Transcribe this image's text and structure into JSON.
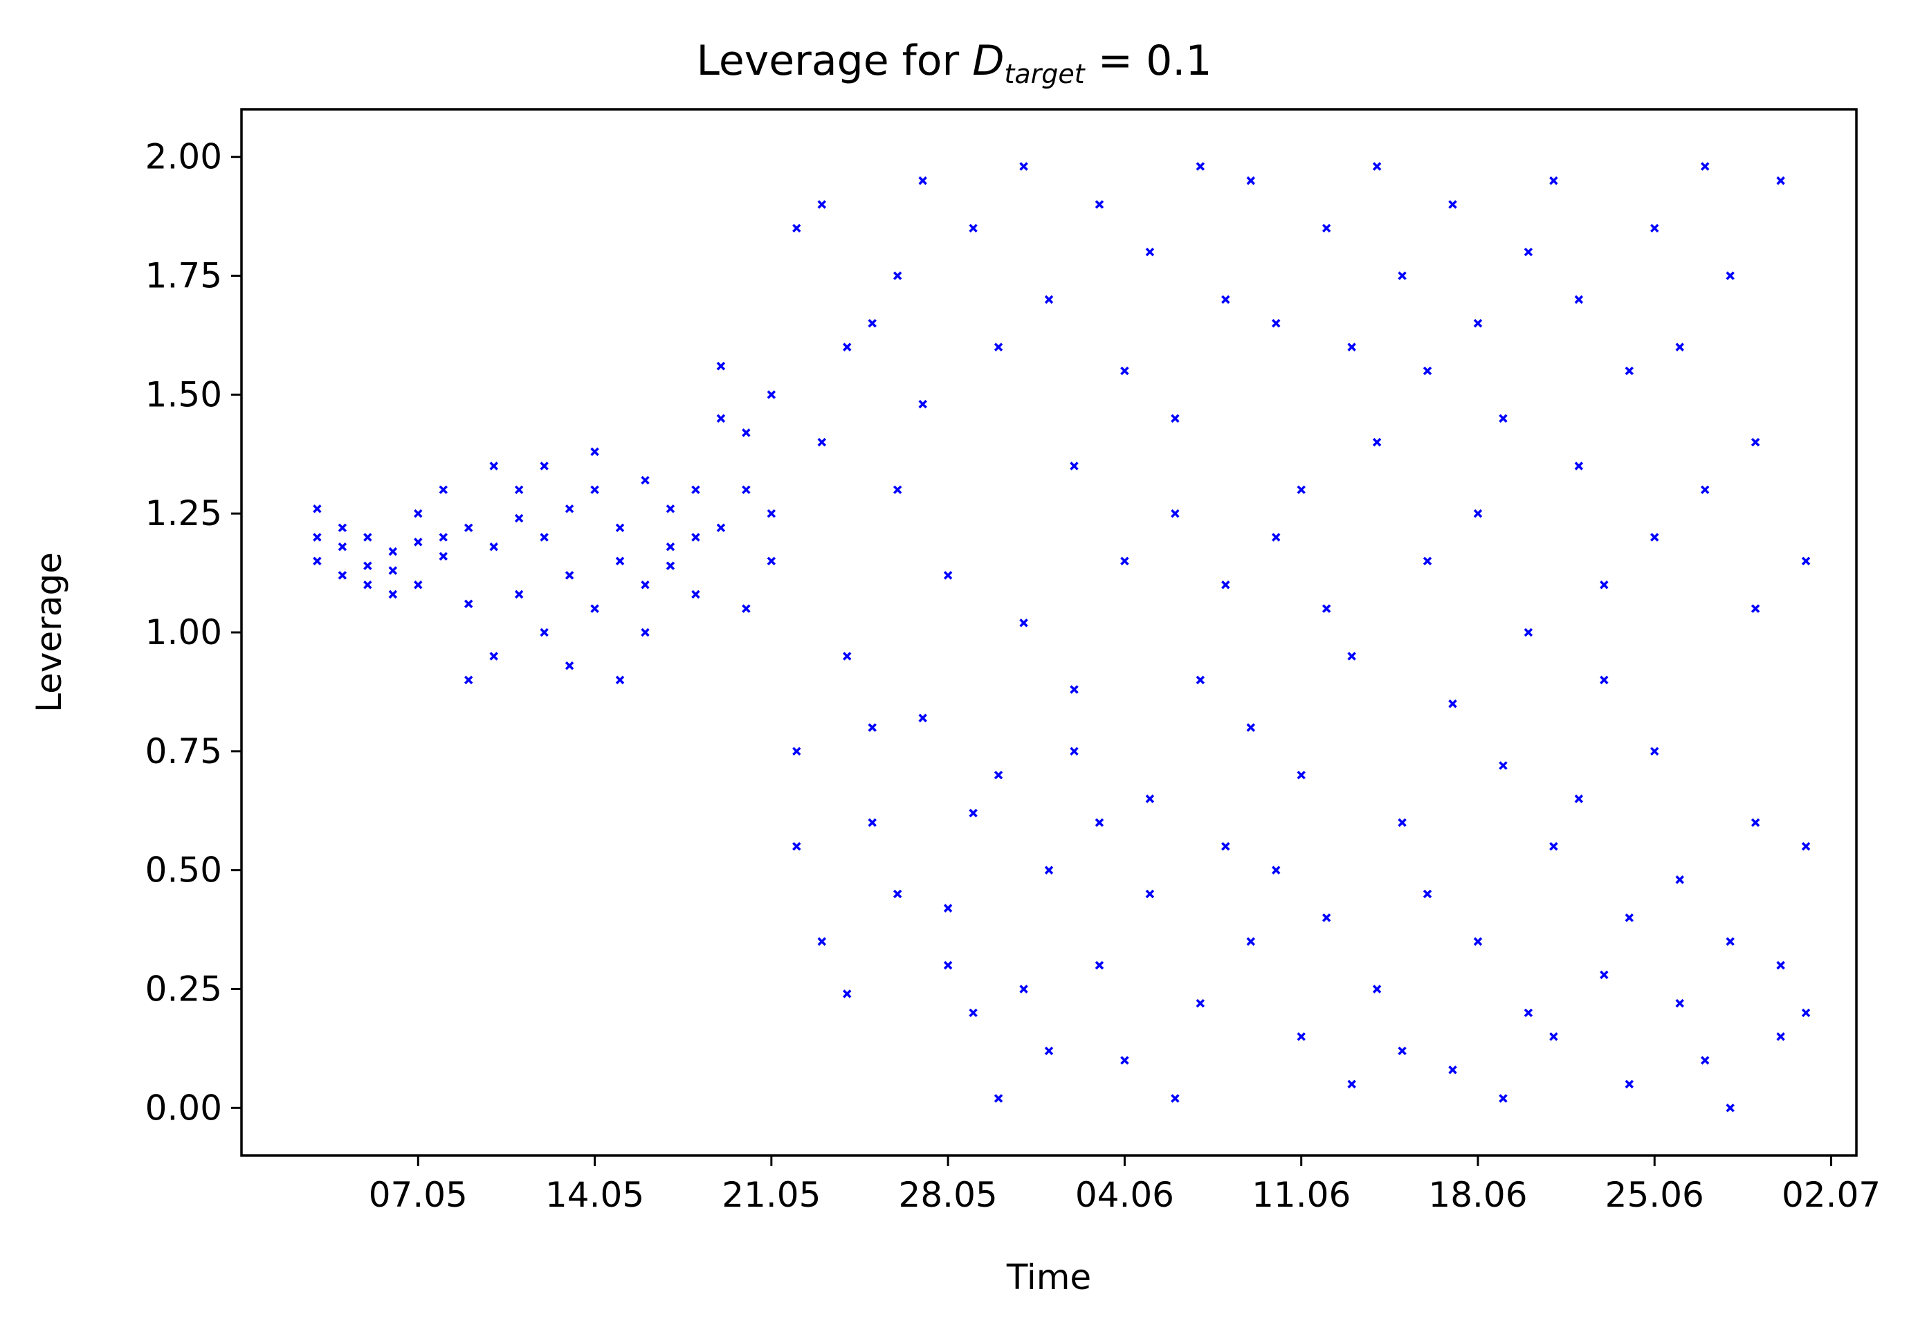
{
  "chart_data": {
    "type": "scatter",
    "title": {
      "prefix": "Leverage for ",
      "symbol": "D",
      "subscript": "target",
      "suffix": " = 0.1"
    },
    "xlabel": "Time",
    "ylabel": "Leverage",
    "x_type": "date",
    "x_range": [
      "2021-04-30",
      "2021-07-03"
    ],
    "x_ticks": [
      {
        "date": "2021-05-07",
        "label": "07.05"
      },
      {
        "date": "2021-05-14",
        "label": "14.05"
      },
      {
        "date": "2021-05-21",
        "label": "21.05"
      },
      {
        "date": "2021-05-28",
        "label": "28.05"
      },
      {
        "date": "2021-06-04",
        "label": "04.06"
      },
      {
        "date": "2021-06-11",
        "label": "11.06"
      },
      {
        "date": "2021-06-18",
        "label": "18.06"
      },
      {
        "date": "2021-06-25",
        "label": "25.06"
      },
      {
        "date": "2021-07-02",
        "label": "02.07"
      }
    ],
    "ylim": [
      -0.1,
      2.1
    ],
    "y_ticks": [
      {
        "value": 0.0,
        "label": "0.00"
      },
      {
        "value": 0.25,
        "label": "0.25"
      },
      {
        "value": 0.5,
        "label": "0.50"
      },
      {
        "value": 0.75,
        "label": "0.75"
      },
      {
        "value": 1.0,
        "label": "1.00"
      },
      {
        "value": 1.25,
        "label": "1.25"
      },
      {
        "value": 1.5,
        "label": "1.50"
      },
      {
        "value": 1.75,
        "label": "1.75"
      },
      {
        "value": 2.0,
        "label": "2.00"
      }
    ],
    "grid": false,
    "legend": "none",
    "marker": "x",
    "color": "#0000ff",
    "series": [
      {
        "points": [
          [
            "2021-05-03",
            1.15
          ],
          [
            "2021-05-03",
            1.2
          ],
          [
            "2021-05-03",
            1.26
          ],
          [
            "2021-05-04",
            1.12
          ],
          [
            "2021-05-04",
            1.22
          ],
          [
            "2021-05-04",
            1.18
          ],
          [
            "2021-05-05",
            1.1
          ],
          [
            "2021-05-05",
            1.14
          ],
          [
            "2021-05-05",
            1.2
          ],
          [
            "2021-05-06",
            1.08
          ],
          [
            "2021-05-06",
            1.17
          ],
          [
            "2021-05-06",
            1.13
          ],
          [
            "2021-05-07",
            1.19
          ],
          [
            "2021-05-07",
            1.25
          ],
          [
            "2021-05-07",
            1.1
          ],
          [
            "2021-05-08",
            1.2
          ],
          [
            "2021-05-08",
            1.3
          ],
          [
            "2021-05-08",
            1.16
          ],
          [
            "2021-05-09",
            1.22
          ],
          [
            "2021-05-09",
            1.06
          ],
          [
            "2021-05-09",
            0.9
          ],
          [
            "2021-05-10",
            0.95
          ],
          [
            "2021-05-10",
            1.35
          ],
          [
            "2021-05-10",
            1.18
          ],
          [
            "2021-05-11",
            1.24
          ],
          [
            "2021-05-11",
            1.08
          ],
          [
            "2021-05-11",
            1.3
          ],
          [
            "2021-05-12",
            1.35
          ],
          [
            "2021-05-12",
            1.0
          ],
          [
            "2021-05-12",
            1.2
          ],
          [
            "2021-05-13",
            0.93
          ],
          [
            "2021-05-13",
            1.26
          ],
          [
            "2021-05-13",
            1.12
          ],
          [
            "2021-05-14",
            1.05
          ],
          [
            "2021-05-14",
            1.3
          ],
          [
            "2021-05-14",
            1.38
          ],
          [
            "2021-05-15",
            0.9
          ],
          [
            "2021-05-15",
            1.15
          ],
          [
            "2021-05-15",
            1.22
          ],
          [
            "2021-05-16",
            1.0
          ],
          [
            "2021-05-16",
            1.32
          ],
          [
            "2021-05-16",
            1.1
          ],
          [
            "2021-05-17",
            1.18
          ],
          [
            "2021-05-17",
            1.26
          ],
          [
            "2021-05-17",
            1.14
          ],
          [
            "2021-05-18",
            1.2
          ],
          [
            "2021-05-18",
            1.3
          ],
          [
            "2021-05-18",
            1.08
          ],
          [
            "2021-05-19",
            1.22
          ],
          [
            "2021-05-19",
            1.45
          ],
          [
            "2021-05-19",
            1.56
          ],
          [
            "2021-05-20",
            1.05
          ],
          [
            "2021-05-20",
            1.3
          ],
          [
            "2021-05-20",
            1.42
          ],
          [
            "2021-05-21",
            1.15
          ],
          [
            "2021-05-21",
            1.5
          ],
          [
            "2021-05-21",
            1.25
          ],
          [
            "2021-05-22",
            0.75
          ],
          [
            "2021-05-22",
            1.85
          ],
          [
            "2021-05-22",
            0.55
          ],
          [
            "2021-05-23",
            1.9
          ],
          [
            "2021-05-23",
            0.35
          ],
          [
            "2021-05-23",
            1.4
          ],
          [
            "2021-05-24",
            0.24
          ],
          [
            "2021-05-24",
            1.6
          ],
          [
            "2021-05-24",
            0.95
          ],
          [
            "2021-05-25",
            0.6
          ],
          [
            "2021-05-25",
            1.65
          ],
          [
            "2021-05-25",
            0.8
          ],
          [
            "2021-05-26",
            1.75
          ],
          [
            "2021-05-26",
            0.45
          ],
          [
            "2021-05-26",
            1.3
          ],
          [
            "2021-05-27",
            0.82
          ],
          [
            "2021-05-27",
            1.95
          ],
          [
            "2021-05-27",
            1.48
          ],
          [
            "2021-05-28",
            0.42
          ],
          [
            "2021-05-28",
            1.12
          ],
          [
            "2021-05-28",
            0.3
          ],
          [
            "2021-05-29",
            0.62
          ],
          [
            "2021-05-29",
            1.85
          ],
          [
            "2021-05-29",
            0.2
          ],
          [
            "2021-05-30",
            0.02
          ],
          [
            "2021-05-30",
            1.6
          ],
          [
            "2021-05-30",
            0.7
          ],
          [
            "2021-05-31",
            0.25
          ],
          [
            "2021-05-31",
            1.98
          ],
          [
            "2021-05-31",
            1.02
          ],
          [
            "2021-06-01",
            0.5
          ],
          [
            "2021-06-01",
            1.7
          ],
          [
            "2021-06-01",
            0.12
          ],
          [
            "2021-06-02",
            0.75
          ],
          [
            "2021-06-02",
            1.35
          ],
          [
            "2021-06-02",
            0.88
          ],
          [
            "2021-06-03",
            0.3
          ],
          [
            "2021-06-03",
            1.9
          ],
          [
            "2021-06-03",
            0.6
          ],
          [
            "2021-06-04",
            0.1
          ],
          [
            "2021-06-04",
            1.55
          ],
          [
            "2021-06-04",
            1.15
          ],
          [
            "2021-06-05",
            0.45
          ],
          [
            "2021-06-05",
            1.8
          ],
          [
            "2021-06-05",
            0.65
          ],
          [
            "2021-06-06",
            1.25
          ],
          [
            "2021-06-06",
            0.02
          ],
          [
            "2021-06-06",
            1.45
          ],
          [
            "2021-06-07",
            0.9
          ],
          [
            "2021-06-07",
            1.98
          ],
          [
            "2021-06-07",
            0.22
          ],
          [
            "2021-06-08",
            1.1
          ],
          [
            "2021-06-08",
            0.55
          ],
          [
            "2021-06-08",
            1.7
          ],
          [
            "2021-06-09",
            0.35
          ],
          [
            "2021-06-09",
            1.95
          ],
          [
            "2021-06-09",
            0.8
          ],
          [
            "2021-06-10",
            1.2
          ],
          [
            "2021-06-10",
            0.5
          ],
          [
            "2021-06-10",
            1.65
          ],
          [
            "2021-06-11",
            0.15
          ],
          [
            "2021-06-11",
            1.3
          ],
          [
            "2021-06-11",
            0.7
          ],
          [
            "2021-06-12",
            1.85
          ],
          [
            "2021-06-12",
            0.4
          ],
          [
            "2021-06-12",
            1.05
          ],
          [
            "2021-06-13",
            0.05
          ],
          [
            "2021-06-13",
            1.6
          ],
          [
            "2021-06-13",
            0.95
          ],
          [
            "2021-06-14",
            1.98
          ],
          [
            "2021-06-14",
            0.25
          ],
          [
            "2021-06-14",
            1.4
          ],
          [
            "2021-06-15",
            0.6
          ],
          [
            "2021-06-15",
            1.75
          ],
          [
            "2021-06-15",
            0.12
          ],
          [
            "2021-06-16",
            1.15
          ],
          [
            "2021-06-16",
            0.45
          ],
          [
            "2021-06-16",
            1.55
          ],
          [
            "2021-06-17",
            0.85
          ],
          [
            "2021-06-17",
            1.9
          ],
          [
            "2021-06-17",
            0.08
          ],
          [
            "2021-06-18",
            1.25
          ],
          [
            "2021-06-18",
            0.35
          ],
          [
            "2021-06-18",
            1.65
          ],
          [
            "2021-06-19",
            0.02
          ],
          [
            "2021-06-19",
            1.45
          ],
          [
            "2021-06-19",
            0.72
          ],
          [
            "2021-06-20",
            1.8
          ],
          [
            "2021-06-20",
            0.2
          ],
          [
            "2021-06-20",
            1.0
          ],
          [
            "2021-06-21",
            0.55
          ],
          [
            "2021-06-21",
            1.95
          ],
          [
            "2021-06-21",
            0.15
          ],
          [
            "2021-06-22",
            1.35
          ],
          [
            "2021-06-22",
            0.65
          ],
          [
            "2021-06-22",
            1.7
          ],
          [
            "2021-06-23",
            0.28
          ],
          [
            "2021-06-23",
            1.1
          ],
          [
            "2021-06-23",
            0.9
          ],
          [
            "2021-06-24",
            1.55
          ],
          [
            "2021-06-24",
            0.4
          ],
          [
            "2021-06-24",
            0.05
          ],
          [
            "2021-06-25",
            1.2
          ],
          [
            "2021-06-25",
            0.75
          ],
          [
            "2021-06-25",
            1.85
          ],
          [
            "2021-06-26",
            0.22
          ],
          [
            "2021-06-26",
            1.6
          ],
          [
            "2021-06-26",
            0.48
          ],
          [
            "2021-06-27",
            1.98
          ],
          [
            "2021-06-27",
            0.1
          ],
          [
            "2021-06-27",
            1.3
          ],
          [
            "2021-06-28",
            0.0
          ],
          [
            "2021-06-28",
            1.75
          ],
          [
            "2021-06-28",
            0.35
          ],
          [
            "2021-06-29",
            1.4
          ],
          [
            "2021-06-29",
            0.6
          ],
          [
            "2021-06-29",
            1.05
          ],
          [
            "2021-06-30",
            0.3
          ],
          [
            "2021-06-30",
            1.95
          ],
          [
            "2021-06-30",
            0.15
          ],
          [
            "2021-07-01",
            1.15
          ],
          [
            "2021-07-01",
            0.55
          ],
          [
            "2021-07-01",
            0.2
          ]
        ]
      }
    ]
  }
}
